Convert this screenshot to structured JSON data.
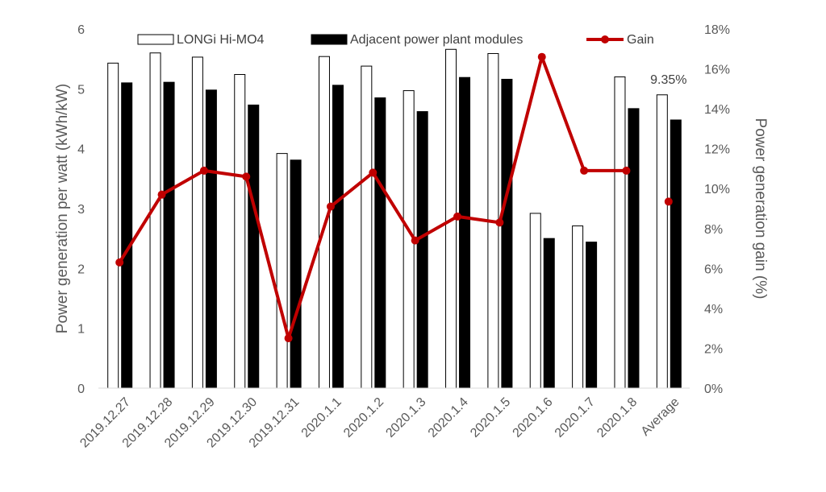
{
  "chart_data": {
    "type": "bar",
    "categories": [
      "2019.12.27",
      "2019.12.28",
      "2019.12.29",
      "2019.12.30",
      "2019.12.31",
      "2020.1.1",
      "2020.1.2",
      "2020.1.3",
      "2020.1.4",
      "2020.1.5",
      "2020.1.6",
      "2020.1.7",
      "2020.1.8",
      "Average"
    ],
    "series": [
      {
        "name": "LONGi Hi-MO4",
        "kind": "bar",
        "axis": "left",
        "fill": "#ffffff",
        "stroke": "#000000",
        "values": [
          5.43,
          5.6,
          5.53,
          5.24,
          3.92,
          5.54,
          5.38,
          4.97,
          5.66,
          5.59,
          2.92,
          2.71,
          5.2,
          4.9
        ]
      },
      {
        "name": "Adjacent power plant modules",
        "kind": "bar",
        "axis": "left",
        "fill": "#000000",
        "stroke": "#000000",
        "values": [
          5.1,
          5.11,
          4.98,
          4.73,
          3.81,
          5.06,
          4.85,
          4.62,
          5.19,
          5.16,
          2.5,
          2.44,
          4.67,
          4.48
        ]
      },
      {
        "name": "Gain",
        "kind": "line",
        "axis": "right",
        "color": "#c00000",
        "values": [
          6.3,
          9.7,
          10.9,
          10.6,
          2.5,
          9.1,
          10.8,
          7.4,
          8.6,
          8.3,
          16.6,
          10.9,
          10.9,
          null
        ]
      },
      {
        "name": "",
        "kind": "point",
        "axis": "right",
        "color": "#c00000",
        "values": [
          null,
          null,
          null,
          null,
          null,
          null,
          null,
          null,
          null,
          null,
          null,
          null,
          null,
          9.35
        ]
      }
    ],
    "ylabel": "Power generation per watt (kWh/kW)",
    "y2label": "Power generation gain (%)",
    "ylim": [
      0,
      6
    ],
    "y2lim": [
      0,
      18
    ],
    "yticks": [
      "0",
      "1",
      "2",
      "3",
      "4",
      "5",
      "6"
    ],
    "y2ticks": [
      "0%",
      "2%",
      "4%",
      "6%",
      "8%",
      "10%",
      "12%",
      "14%",
      "16%",
      "18%"
    ],
    "annotation": {
      "category": "Average",
      "text": "9.35%"
    },
    "legend": {
      "placement": "top",
      "entries": [
        "LONGi Hi-MO4",
        "Adjacent power plant modules",
        "Gain"
      ]
    },
    "grid": false
  }
}
